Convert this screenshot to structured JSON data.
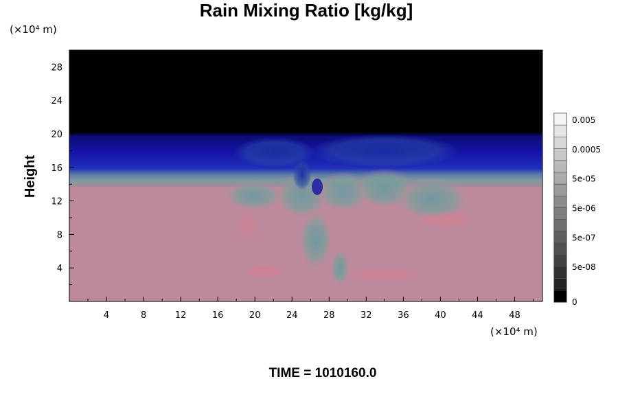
{
  "chart_data": {
    "type": "heatmap",
    "title": "Rain Mixing Ratio [kg/kg]",
    "ylabel": "Height",
    "x_unit_label": "(×10⁴ m)",
    "y_unit_label": "(×10⁴ m)",
    "xlim": [
      0,
      51
    ],
    "ylim": [
      0,
      30
    ],
    "x_ticks": [
      "4",
      "8",
      "12",
      "16",
      "20",
      "24",
      "28",
      "32",
      "36",
      "40",
      "44",
      "48"
    ],
    "y_ticks": [
      "4",
      "8",
      "12",
      "16",
      "20",
      "24",
      "28"
    ],
    "colorbar": {
      "labels": [
        "0.005",
        "0.0005",
        "5e-05",
        "5e-06",
        "5e-07",
        "5e-08",
        "0"
      ]
    },
    "field_layers": [
      {
        "name": "top-black",
        "y_from": 20,
        "y_to": 30,
        "color": "#000000"
      },
      {
        "name": "blue-band",
        "y_from": 16.2,
        "y_to": 20,
        "color": "#1010a0"
      },
      {
        "name": "pink-region",
        "y_from": 0,
        "y_to": 13.5,
        "color": "#bc8a9c"
      }
    ],
    "footer": "TIME = 1010160.0"
  }
}
